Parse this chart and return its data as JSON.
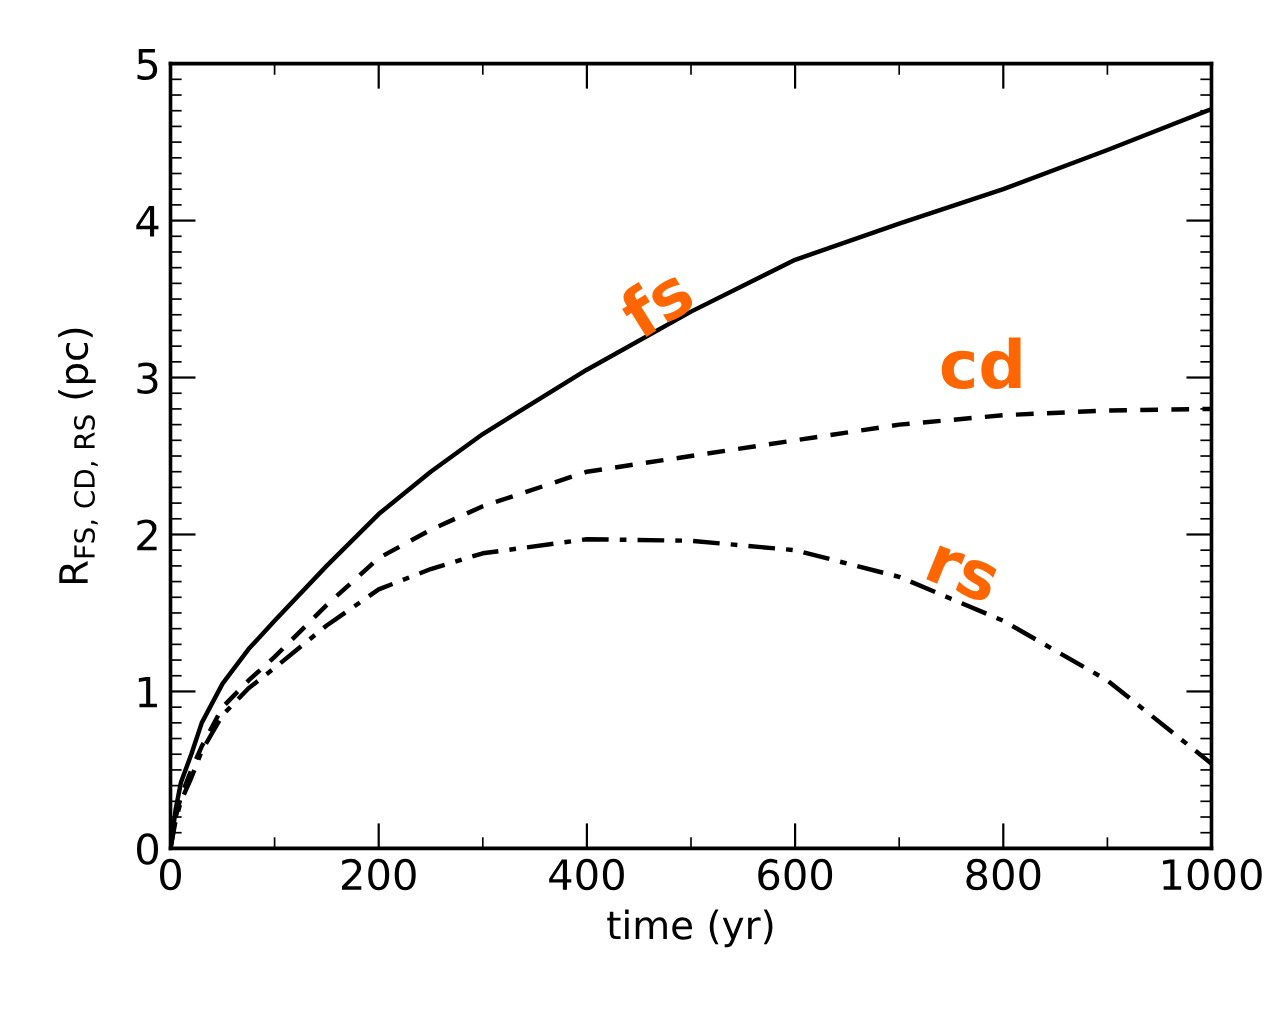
{
  "chart_data": {
    "type": "line",
    "xlabel": "time (yr)",
    "ylabel": "R$_{FS, CD, RS}$ (pc)",
    "xlim": [
      0,
      1000
    ],
    "xticks": [
      0,
      200,
      400,
      600,
      800,
      1000
    ],
    "ylim": [
      0,
      5
    ],
    "yticks": [
      0,
      1,
      2,
      3,
      4,
      5
    ],
    "grid": false,
    "x": [
      0,
      5,
      10,
      20,
      30,
      50,
      75,
      100,
      150,
      200,
      250,
      300,
      400,
      500,
      600,
      700,
      800,
      900,
      1000
    ],
    "series": [
      {
        "name": "fs",
        "color": "#000000",
        "line_style": "solid",
        "values": [
          0,
          0.25,
          0.42,
          0.6,
          0.8,
          1.05,
          1.27,
          1.45,
          1.8,
          2.13,
          2.4,
          2.64,
          3.05,
          3.42,
          3.75,
          3.98,
          4.2,
          4.45,
          4.71
        ]
      },
      {
        "name": "cd",
        "color": "#000000",
        "line_style": "dashed",
        "values": [
          0,
          0.2,
          0.33,
          0.5,
          0.65,
          0.9,
          1.07,
          1.22,
          1.55,
          1.85,
          2.03,
          2.18,
          2.4,
          2.5,
          2.6,
          2.7,
          2.76,
          2.79,
          2.8
        ]
      },
      {
        "name": "rs",
        "color": "#000000",
        "line_style": "dashdot",
        "values": [
          0,
          0.18,
          0.3,
          0.45,
          0.62,
          0.85,
          1.02,
          1.15,
          1.42,
          1.65,
          1.78,
          1.88,
          1.97,
          1.96,
          1.9,
          1.73,
          1.45,
          1.07,
          0.54
        ]
      }
    ]
  }
}
